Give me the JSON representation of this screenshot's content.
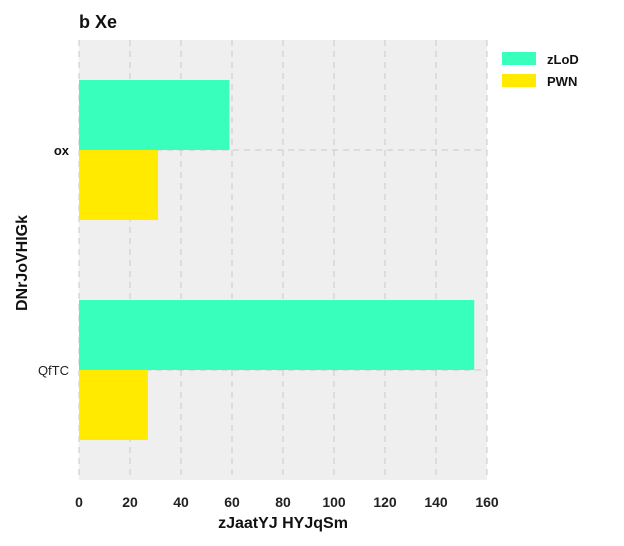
{
  "chart_data": {
    "type": "bar",
    "orientation": "horizontal",
    "title": "b  Xe",
    "xlabel": "zJaatYJ HYJqSm",
    "ylabel": "DNrJoVHIGk",
    "categories": [
      "ox",
      "QfTC"
    ],
    "series": [
      {
        "name": "zLoD",
        "color": "#38ffbb",
        "values": [
          59,
          155
        ]
      },
      {
        "name": "PWN",
        "color": "#ffea00",
        "values": [
          31,
          27
        ]
      }
    ],
    "xlim": [
      0,
      160
    ],
    "xticks": [
      0,
      20,
      40,
      60,
      80,
      100,
      120,
      140,
      160
    ],
    "grid": true,
    "legend_position": "top-right-outside"
  }
}
